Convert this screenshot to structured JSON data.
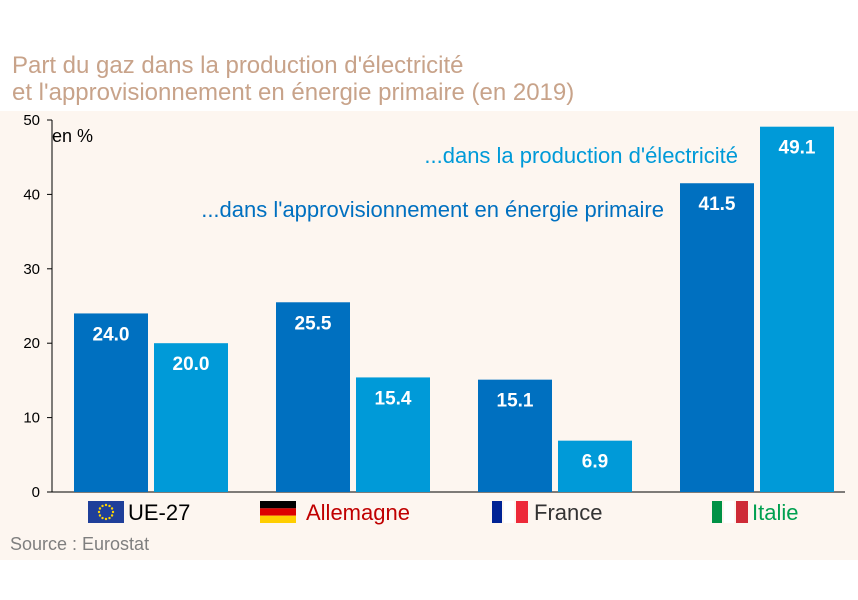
{
  "title_line1": "Part du gaz dans la production d'électricité",
  "title_line2": "et l'approvisionnement en énergie primaire (en 2019)",
  "source": "Source : Eurostat",
  "colors": {
    "primary": "#0070c0",
    "electricity": "#009ad8",
    "title": "#c8a38a",
    "panel": "#fdf6f0",
    "axis": "#000000"
  },
  "chart_data": {
    "type": "bar",
    "title": "Part du gaz dans la production d'électricité et l'approvisionnement en énergie primaire (en 2019)",
    "ylabel": "en %",
    "ylim": [
      0,
      50
    ],
    "yticks": [
      0,
      10,
      20,
      30,
      40,
      50
    ],
    "categories": [
      "UE-27",
      "Allemagne",
      "France",
      "Italie"
    ],
    "category_colors": [
      "#000000",
      "#c00000",
      "#333333",
      "#00a050"
    ],
    "series": [
      {
        "name": "...dans l'approvisionnement en énergie primaire",
        "color": "#0070c0",
        "values": [
          24.0,
          25.5,
          15.1,
          41.5
        ]
      },
      {
        "name": "...dans la production d'électricité",
        "color": "#009ad8",
        "values": [
          20.0,
          15.4,
          6.9,
          49.1
        ]
      }
    ]
  }
}
